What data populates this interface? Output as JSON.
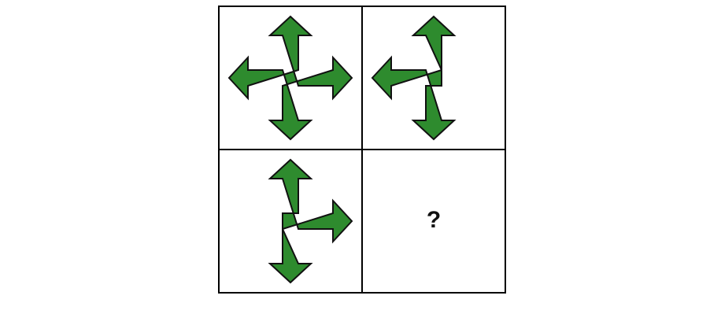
{
  "puzzle": {
    "arrow_color": "#2e8b2e",
    "outline_color": "#111111",
    "cells": [
      {
        "name": "cell-top-left",
        "arms": [
          "up",
          "down",
          "left",
          "right"
        ]
      },
      {
        "name": "cell-top-right",
        "arms": [
          "up",
          "down",
          "left"
        ]
      },
      {
        "name": "cell-bottom-left",
        "arms": [
          "up",
          "down",
          "right"
        ]
      },
      {
        "name": "cell-bottom-right",
        "arms": []
      }
    ],
    "question_mark": "?"
  }
}
